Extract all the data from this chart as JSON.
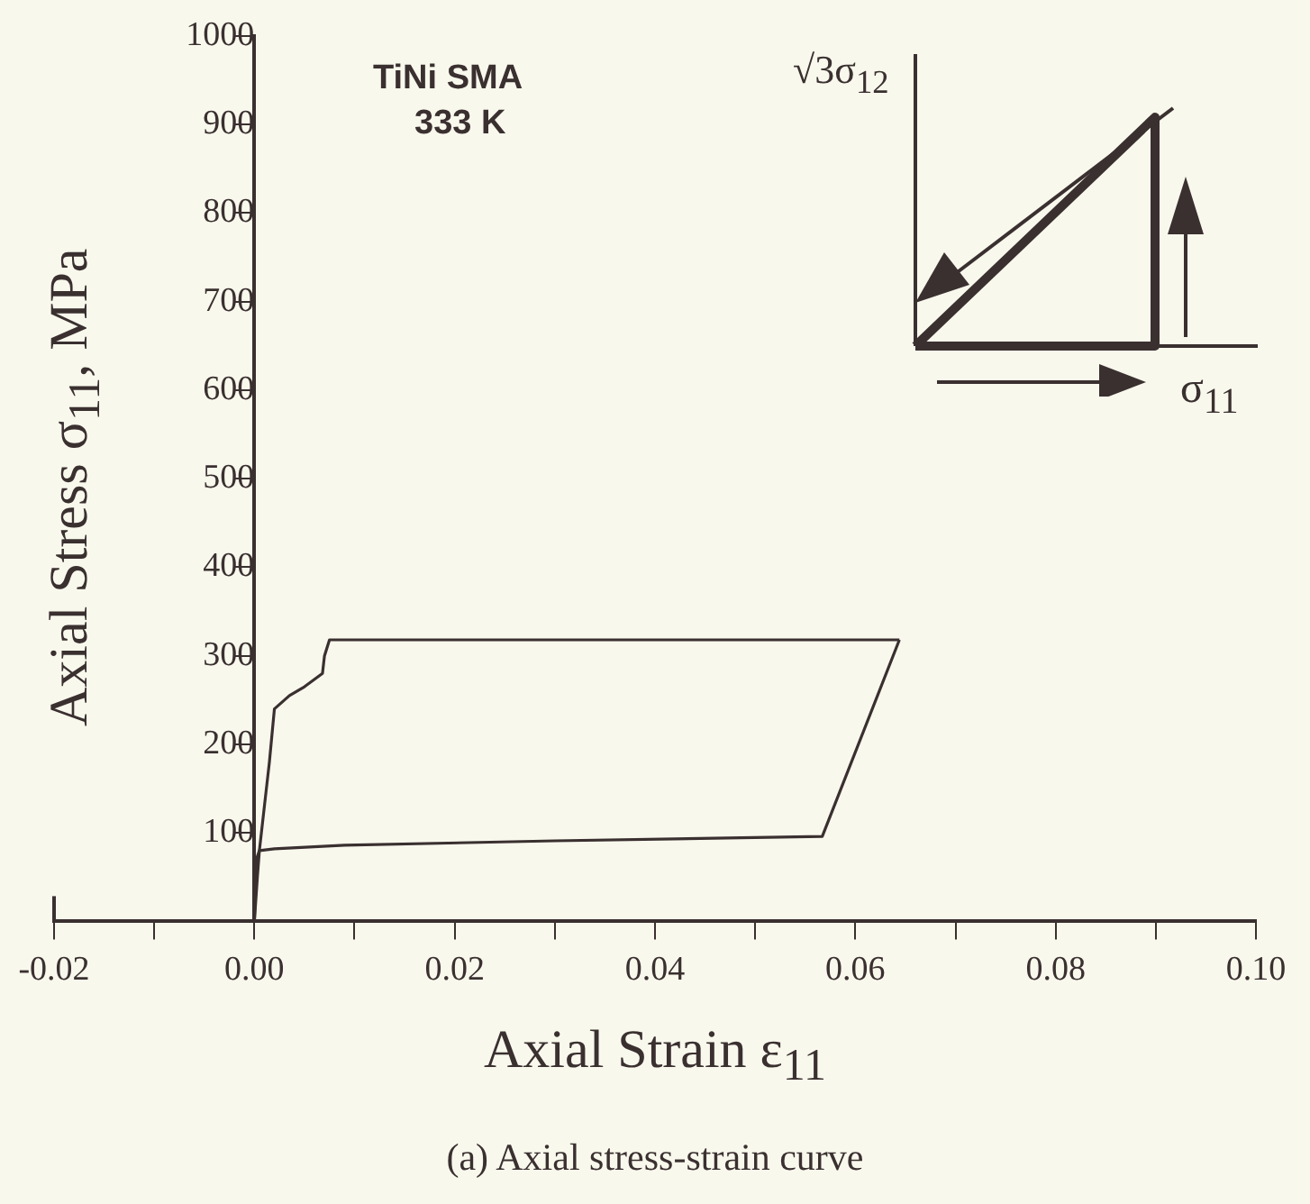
{
  "chart_data": {
    "type": "line",
    "title": "(a) Axial stress-strain curve",
    "xlabel": "Axial Strain ε$_{11}$",
    "ylabel": "Axial Stress σ$_{11}$,  MPa",
    "series": [
      {
        "x": [
          0,
          0.0003,
          0.0005,
          0.001,
          0.0015,
          0.002,
          0.0035,
          0.005,
          0.0068,
          0.007,
          0.0075,
          0.0644
        ],
        "values": [
          0,
          50,
          80,
          130,
          180,
          240,
          255,
          265,
          280,
          300,
          318,
          318
        ],
        "color": "#3a3030"
      },
      {
        "x": [
          0,
          0.0002,
          0.0005,
          0.002,
          0.009,
          0.03,
          0.0567,
          0.0644
        ],
        "values": [
          0,
          70,
          80,
          82,
          86,
          91,
          96,
          318
        ],
        "color": "#3a3030"
      }
    ],
    "marker": "none",
    "line_style": "solid",
    "grid": false,
    "legend": false,
    "xlim": [
      -0.02,
      0.1
    ],
    "xticks": [
      -0.02,
      {
        "value": -0.01,
        "label": null
      },
      {
        "value": 0,
        "label": "0.00"
      },
      {
        "value": 0.01,
        "label": null
      },
      0.02,
      {
        "value": 0.03,
        "label": null
      },
      0.04,
      {
        "value": 0.05,
        "label": null
      },
      0.06,
      {
        "value": 0.07,
        "label": null
      },
      0.08,
      {
        "value": 0.09,
        "label": null
      },
      {
        "value": 0.1,
        "label": "0.10"
      }
    ],
    "ylim": [
      0,
      1000
    ],
    "yticks": [
      100,
      200,
      300,
      400,
      500,
      600,
      700,
      800,
      900,
      1000
    ],
    "annotations": [
      "TiNi   SMA",
      "333 K",
      "√3σ$_{12}$",
      "σ$_{11}$"
    ]
  }
}
